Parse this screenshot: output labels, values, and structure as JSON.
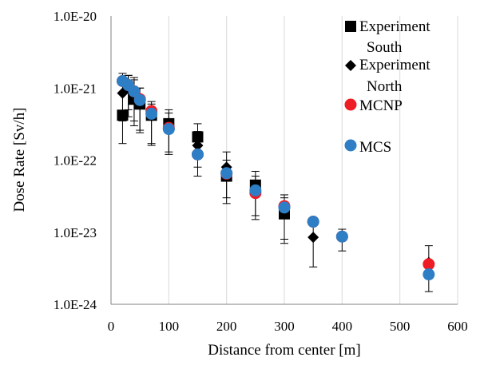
{
  "chart_data": {
    "type": "scatter",
    "title": "",
    "xlabel": "Distance from center [m]",
    "ylabel": "Dose Rate [Sv/h]",
    "xlim": [
      0,
      600
    ],
    "ylim": [
      1e-24,
      1e-20
    ],
    "y_scale": "log",
    "x_ticks": [
      0,
      100,
      200,
      300,
      400,
      500,
      600
    ],
    "x_tick_labels": [
      "0",
      "100",
      "200",
      "300",
      "400",
      "500",
      "600"
    ],
    "y_ticks": [
      1e-24,
      1e-23,
      1e-22,
      1e-21,
      1e-20
    ],
    "y_tick_labels": [
      "1.0E-24",
      "1.0E-23",
      "1.0E-22",
      "1.0E-21",
      "1.0E-20"
    ],
    "grid": "vertical",
    "legend_position": "top-right",
    "series": [
      {
        "name": "Experiment South",
        "marker": "square",
        "color": "#000000",
        "points": [
          {
            "x": 20,
            "y": 4.2e-22,
            "lo": 1.7e-22,
            "hi": 1.1e-21
          },
          {
            "x": 30,
            "y": 1e-21,
            "lo": 5e-22,
            "hi": 1.5e-21
          },
          {
            "x": 40,
            "y": 7e-22,
            "lo": 3e-22,
            "hi": 1.3e-21
          },
          {
            "x": 50,
            "y": 6e-22,
            "lo": 2.4e-22,
            "hi": 1e-21
          },
          {
            "x": 70,
            "y": 4.2e-22,
            "lo": 1.6e-22,
            "hi": 6e-22
          },
          {
            "x": 100,
            "y": 3.2e-22,
            "lo": 1.3e-22,
            "hi": 5e-22
          },
          {
            "x": 150,
            "y": 2.1e-22,
            "lo": 8e-23,
            "hi": 3.2e-22
          },
          {
            "x": 200,
            "y": 6e-23,
            "lo": 2.5e-23,
            "hi": 1e-22
          },
          {
            "x": 250,
            "y": 4.5e-23,
            "lo": 1.7e-23,
            "hi": 7e-23
          },
          {
            "x": 300,
            "y": 1.8e-23,
            "lo": 7e-24,
            "hi": 3e-23
          }
        ]
      },
      {
        "name": "Experiment North",
        "marker": "diamond",
        "color": "#000000",
        "points": [
          {
            "x": 20,
            "y": 8.5e-22,
            "lo": 3.5e-22,
            "hi": 1.6e-21
          },
          {
            "x": 30,
            "y": 1e-21,
            "lo": 4e-22,
            "hi": 1.5e-21
          },
          {
            "x": 40,
            "y": 8.5e-22,
            "lo": 3.5e-22,
            "hi": 1.4e-21
          },
          {
            "x": 50,
            "y": 6.5e-22,
            "lo": 2.6e-22,
            "hi": 1e-21
          },
          {
            "x": 70,
            "y": 4.3e-22,
            "lo": 1.7e-22,
            "hi": 6.5e-22
          },
          {
            "x": 100,
            "y": 2.8e-22,
            "lo": 1.2e-22,
            "hi": 4.5e-22
          },
          {
            "x": 150,
            "y": 1.6e-22,
            "lo": 6e-23,
            "hi": 2.5e-22
          },
          {
            "x": 200,
            "y": 8e-23,
            "lo": 3e-23,
            "hi": 1.3e-22
          },
          {
            "x": 250,
            "y": 3.8e-23,
            "lo": 1.5e-23,
            "hi": 6e-23
          },
          {
            "x": 300,
            "y": 2.1e-23,
            "lo": 8e-24,
            "hi": 3.3e-23
          },
          {
            "x": 350,
            "y": 8.5e-24,
            "lo": 3.3e-24,
            "hi": 1.4e-23
          },
          {
            "x": 400,
            "y": 8.5e-24,
            "lo": 5.5e-24,
            "hi": 1.1e-23
          },
          {
            "x": 550,
            "y": 3.8e-24,
            "lo": 1.5e-24,
            "hi": 6.5e-24
          }
        ]
      },
      {
        "name": "MCNP",
        "marker": "circle",
        "color": "#ee1c24",
        "points": [
          {
            "x": 20,
            "y": 1.25e-21
          },
          {
            "x": 30,
            "y": 1.1e-21
          },
          {
            "x": 40,
            "y": 9e-22
          },
          {
            "x": 50,
            "y": 7e-22
          },
          {
            "x": 70,
            "y": 4.8e-22
          },
          {
            "x": 100,
            "y": 2.8e-22
          },
          {
            "x": 150,
            "y": 1.2e-22
          },
          {
            "x": 200,
            "y": 6.5e-23
          },
          {
            "x": 250,
            "y": 3.5e-23
          },
          {
            "x": 300,
            "y": 2.3e-23
          },
          {
            "x": 350,
            "y": 1.4e-23
          },
          {
            "x": 400,
            "y": 8.7e-24
          },
          {
            "x": 550,
            "y": 3.6e-24
          }
        ]
      },
      {
        "name": "MCS",
        "marker": "circle",
        "color": "#2e7ec6",
        "points": [
          {
            "x": 20,
            "y": 1.25e-21
          },
          {
            "x": 30,
            "y": 1.1e-21
          },
          {
            "x": 40,
            "y": 9e-22
          },
          {
            "x": 50,
            "y": 6.8e-22
          },
          {
            "x": 70,
            "y": 4.4e-22
          },
          {
            "x": 100,
            "y": 2.7e-22
          },
          {
            "x": 150,
            "y": 1.2e-22
          },
          {
            "x": 200,
            "y": 6.6e-23
          },
          {
            "x": 250,
            "y": 3.8e-23
          },
          {
            "x": 300,
            "y": 2.2e-23
          },
          {
            "x": 350,
            "y": 1.4e-23
          },
          {
            "x": 400,
            "y": 8.7e-24
          },
          {
            "x": 550,
            "y": 2.6e-24
          }
        ]
      }
    ],
    "legend": [
      {
        "marker": "square",
        "color": "#000000",
        "lines": [
          "Experiment",
          "South"
        ]
      },
      {
        "marker": "diamond",
        "color": "#000000",
        "lines": [
          "Experiment",
          "North"
        ]
      },
      {
        "marker": "circle",
        "color": "#ee1c24",
        "lines": [
          "MCNP"
        ]
      },
      {
        "marker": "circle",
        "color": "#2e7ec6",
        "lines": [
          "MCS"
        ]
      }
    ]
  }
}
